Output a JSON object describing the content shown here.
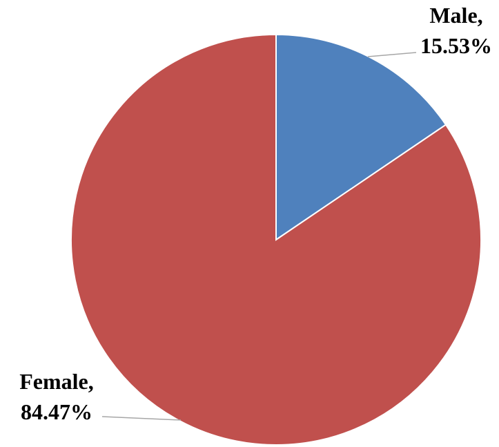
{
  "chart_data": {
    "type": "pie",
    "slices": [
      {
        "name": "Male",
        "value": 15.53,
        "label": "Male,",
        "value_label": "15.53%",
        "color": "#4F81BD"
      },
      {
        "name": "Female",
        "value": 84.47,
        "label": "Female,",
        "value_label": "84.47%",
        "color": "#C0504D"
      }
    ],
    "start_angle": "12 o'clock",
    "direction": "clockwise",
    "legend": "none",
    "title": ""
  }
}
